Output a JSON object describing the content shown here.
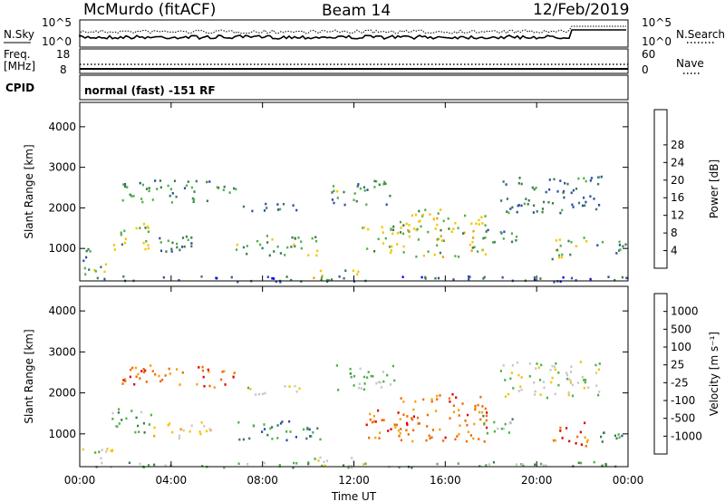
{
  "header": {
    "station": "McMurdo (fitACF)",
    "beam": "Beam 14",
    "date": "12/Feb/2019"
  },
  "noise_panel": {
    "left_label": "N.Sky",
    "right_label": "N.Search",
    "left_ticks": [
      "10^5",
      "10^0"
    ],
    "right_ticks": [
      "10^5",
      "10^0"
    ]
  },
  "freq_panel": {
    "left_label_line1": "Freq.",
    "left_label_line2": "[MHz]",
    "right_label": "Nave",
    "left_ticks": [
      "18",
      "8"
    ],
    "right_ticks": [
      "60",
      "0"
    ]
  },
  "cpid": {
    "label": "CPID",
    "value": "normal (fast) -151 RF"
  },
  "colors": {
    "power": [
      "#0000ff",
      "#2d4fa6",
      "#3e7c4f",
      "#52b049",
      "#f5c400",
      "#f59b00",
      "#f06a00",
      "#e83a00",
      "#e00000"
    ],
    "velocity": [
      "#e00000",
      "#f06a00",
      "#f5a200",
      "#f5c400",
      "#c8c8c8",
      "#52b049",
      "#3e7c4f",
      "#2d4fa6",
      "#0000ff"
    ]
  },
  "chart_data": [
    {
      "type": "heatmap",
      "name": "power",
      "ylabel": "Slant Range [km]",
      "yticks": [
        1000,
        2000,
        3000,
        4000
      ],
      "ylim": [
        200,
        4600
      ],
      "xlim": [
        0,
        24
      ],
      "colorbar": {
        "label": "Power [dB]",
        "ticks": [
          4,
          8,
          12,
          16,
          20,
          24,
          28
        ],
        "range": [
          0,
          32
        ]
      },
      "blobs": [
        {
          "t0": 0.1,
          "t1": 0.6,
          "r0": 700,
          "r1": 1250,
          "v": 12
        },
        {
          "t0": 0.1,
          "t1": 1.4,
          "r0": 250,
          "r1": 650,
          "v": 14
        },
        {
          "t0": 1.4,
          "t1": 3.2,
          "r0": 1000,
          "r1": 1650,
          "v": 15
        },
        {
          "t0": 3.2,
          "t1": 5.8,
          "r0": 900,
          "r1": 1350,
          "v": 10
        },
        {
          "t0": 1.8,
          "t1": 6.8,
          "r0": 2150,
          "r1": 2700,
          "v": 11
        },
        {
          "t0": 6.8,
          "t1": 10.6,
          "r0": 850,
          "r1": 1350,
          "v": 13
        },
        {
          "t0": 7.0,
          "t1": 9.6,
          "r0": 1950,
          "r1": 2200,
          "v": 10
        },
        {
          "t0": 10.2,
          "t1": 12.6,
          "r0": 200,
          "r1": 500,
          "v": 16
        },
        {
          "t0": 11.0,
          "t1": 13.8,
          "r0": 2100,
          "r1": 2700,
          "v": 12
        },
        {
          "t0": 12.3,
          "t1": 14.4,
          "r0": 900,
          "r1": 1600,
          "v": 16
        },
        {
          "t0": 14.0,
          "t1": 17.8,
          "r0": 800,
          "r1": 2000,
          "v": 16
        },
        {
          "t0": 17.6,
          "t1": 19.2,
          "r0": 1000,
          "r1": 1500,
          "v": 11
        },
        {
          "t0": 18.4,
          "t1": 22.8,
          "r0": 1900,
          "r1": 2800,
          "v": 9
        },
        {
          "t0": 20.6,
          "t1": 22.2,
          "r0": 700,
          "r1": 1300,
          "v": 15
        },
        {
          "t0": 22.6,
          "t1": 24.0,
          "r0": 800,
          "r1": 1200,
          "v": 12
        },
        {
          "t0": 0.0,
          "t1": 24.0,
          "r0": 200,
          "r1": 340,
          "v": 7
        }
      ]
    },
    {
      "type": "heatmap",
      "name": "velocity",
      "ylabel": "Slant Range [km]",
      "yticks": [
        1000,
        2000,
        3000,
        4000
      ],
      "ylim": [
        200,
        4600
      ],
      "xlim": [
        0,
        24
      ],
      "xticks": [
        "00:00",
        "04:00",
        "08:00",
        "12:00",
        "16:00",
        "20:00",
        "00:00"
      ],
      "xlabel": "Time UT",
      "colorbar": {
        "label": "Velocity [m s⁻¹]",
        "ticks": [
          "-1000",
          "-500",
          "-100",
          "-25",
          "25",
          "100",
          "500",
          "1000"
        ]
      },
      "blobs": [
        {
          "t0": 0.1,
          "t1": 1.4,
          "r0": 250,
          "r1": 700,
          "v": 4
        },
        {
          "t0": 1.4,
          "t1": 3.2,
          "r0": 1000,
          "r1": 1650,
          "v": 5
        },
        {
          "t0": 3.2,
          "t1": 5.8,
          "r0": 900,
          "r1": 1350,
          "v": 3
        },
        {
          "t0": 1.8,
          "t1": 6.8,
          "r0": 2150,
          "r1": 2700,
          "v": 1
        },
        {
          "t0": 6.8,
          "t1": 10.6,
          "r0": 850,
          "r1": 1350,
          "v": 6
        },
        {
          "t0": 7.0,
          "t1": 9.6,
          "r0": 1950,
          "r1": 2200,
          "v": 4
        },
        {
          "t0": 10.2,
          "t1": 12.6,
          "r0": 200,
          "r1": 500,
          "v": 4
        },
        {
          "t0": 11.0,
          "t1": 13.8,
          "r0": 2100,
          "r1": 2700,
          "v": 5
        },
        {
          "t0": 12.3,
          "t1": 14.4,
          "r0": 900,
          "r1": 1600,
          "v": 1
        },
        {
          "t0": 14.0,
          "t1": 17.8,
          "r0": 800,
          "r1": 2000,
          "v": 1
        },
        {
          "t0": 17.6,
          "t1": 19.2,
          "r0": 1000,
          "r1": 1500,
          "v": 5
        },
        {
          "t0": 18.4,
          "t1": 22.8,
          "r0": 1900,
          "r1": 2800,
          "v": 4
        },
        {
          "t0": 20.6,
          "t1": 22.2,
          "r0": 700,
          "r1": 1300,
          "v": 1
        },
        {
          "t0": 22.6,
          "t1": 24.0,
          "r0": 800,
          "r1": 1200,
          "v": 6
        },
        {
          "t0": 0.0,
          "t1": 24.0,
          "r0": 200,
          "r1": 340,
          "v": 5
        }
      ]
    }
  ]
}
